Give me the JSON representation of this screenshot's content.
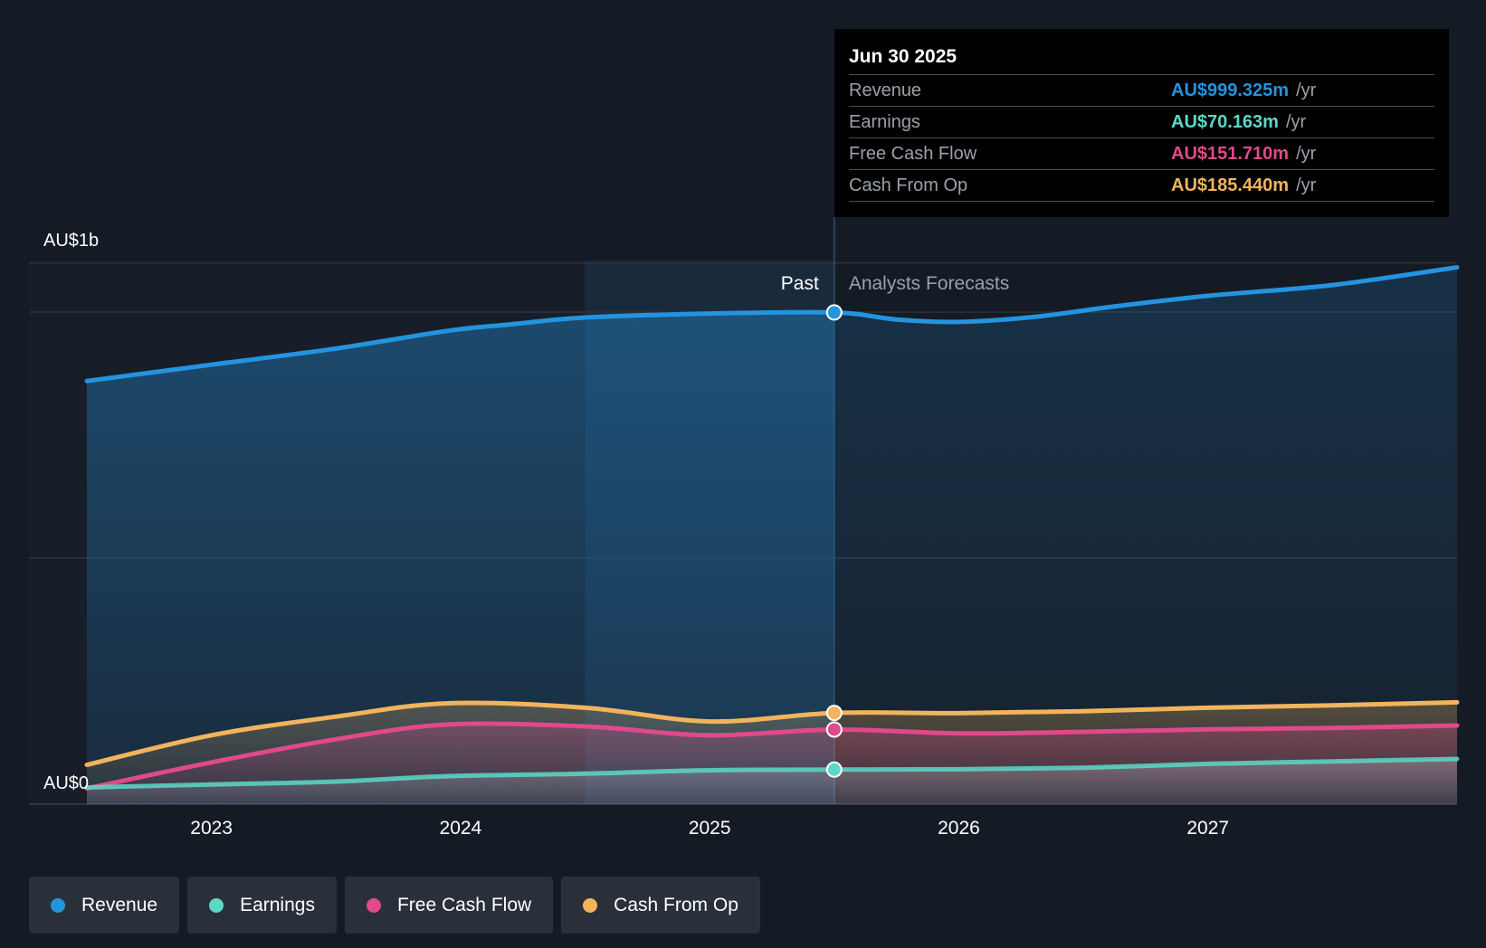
{
  "tooltip": {
    "date": "Jun 30 2025",
    "rows": [
      {
        "name": "Revenue",
        "value": "AU$999.325m",
        "unit": "/yr",
        "color": "#2394df"
      },
      {
        "name": "Earnings",
        "value": "AU$70.163m",
        "unit": "/yr",
        "color": "#5ad9c8"
      },
      {
        "name": "Free Cash Flow",
        "value": "AU$151.710m",
        "unit": "/yr",
        "color": "#e0498a"
      },
      {
        "name": "Cash From Op",
        "value": "AU$185.440m",
        "unit": "/yr",
        "color": "#f1b45c"
      }
    ]
  },
  "legend": [
    {
      "label": "Revenue",
      "color": "#2394df"
    },
    {
      "label": "Earnings",
      "color": "#5ad9c8"
    },
    {
      "label": "Free Cash Flow",
      "color": "#e0498a"
    },
    {
      "label": "Cash From Op",
      "color": "#f1b45c"
    }
  ],
  "chart_data": {
    "type": "area",
    "title": "",
    "y_axis_labels": [
      "AU$1b",
      "AU$0"
    ],
    "ylim": [
      0,
      1100
    ],
    "xlim": [
      2022.5,
      2028.0
    ],
    "x_ticks": [
      2023,
      2024,
      2025,
      2026,
      2027
    ],
    "x_tick_labels": [
      "2023",
      "2024",
      "2025",
      "2026",
      "2027"
    ],
    "gridlines": [
      0,
      500,
      1000
    ],
    "past_label": "Past",
    "forecast_label": "Analysts Forecasts",
    "past_end_x": 2025.5,
    "highlight_start_x": 2024.5,
    "series": [
      {
        "name": "Revenue",
        "color": "#2394df",
        "points": [
          [
            2022.5,
            860
          ],
          [
            2023.0,
            893
          ],
          [
            2023.5,
            926
          ],
          [
            2023.95,
            962
          ],
          [
            2024.2,
            975
          ],
          [
            2024.5,
            989
          ],
          [
            2025.0,
            997
          ],
          [
            2025.5,
            999.3
          ],
          [
            2025.75,
            985
          ],
          [
            2026.0,
            980
          ],
          [
            2026.3,
            990
          ],
          [
            2026.6,
            1010
          ],
          [
            2027.0,
            1033
          ],
          [
            2027.5,
            1055
          ],
          [
            2028.0,
            1091
          ]
        ]
      },
      {
        "name": "Earnings",
        "color": "#5ad9c8",
        "points": [
          [
            2022.5,
            34
          ],
          [
            2023.0,
            40
          ],
          [
            2023.5,
            46
          ],
          [
            2023.95,
            57
          ],
          [
            2024.5,
            62
          ],
          [
            2025.0,
            69
          ],
          [
            2025.5,
            70.2
          ],
          [
            2026.0,
            71
          ],
          [
            2026.5,
            74
          ],
          [
            2027.0,
            82
          ],
          [
            2027.5,
            87
          ],
          [
            2028.0,
            92
          ]
        ]
      },
      {
        "name": "Free Cash Flow",
        "color": "#e0498a",
        "points": [
          [
            2022.5,
            32
          ],
          [
            2023.0,
            85
          ],
          [
            2023.5,
            132
          ],
          [
            2023.95,
            162
          ],
          [
            2024.5,
            158
          ],
          [
            2025.0,
            140
          ],
          [
            2025.5,
            151.7
          ],
          [
            2026.0,
            144
          ],
          [
            2026.5,
            147
          ],
          [
            2027.0,
            152
          ],
          [
            2027.5,
            155
          ],
          [
            2028.0,
            160
          ]
        ]
      },
      {
        "name": "Cash From Op",
        "color": "#f1b45c",
        "points": [
          [
            2022.5,
            80
          ],
          [
            2023.0,
            140
          ],
          [
            2023.5,
            178
          ],
          [
            2023.95,
            205
          ],
          [
            2024.5,
            196
          ],
          [
            2025.0,
            168
          ],
          [
            2025.5,
            185.4
          ],
          [
            2026.0,
            185
          ],
          [
            2026.5,
            189
          ],
          [
            2027.0,
            196
          ],
          [
            2027.5,
            201
          ],
          [
            2028.0,
            207
          ]
        ]
      }
    ]
  }
}
